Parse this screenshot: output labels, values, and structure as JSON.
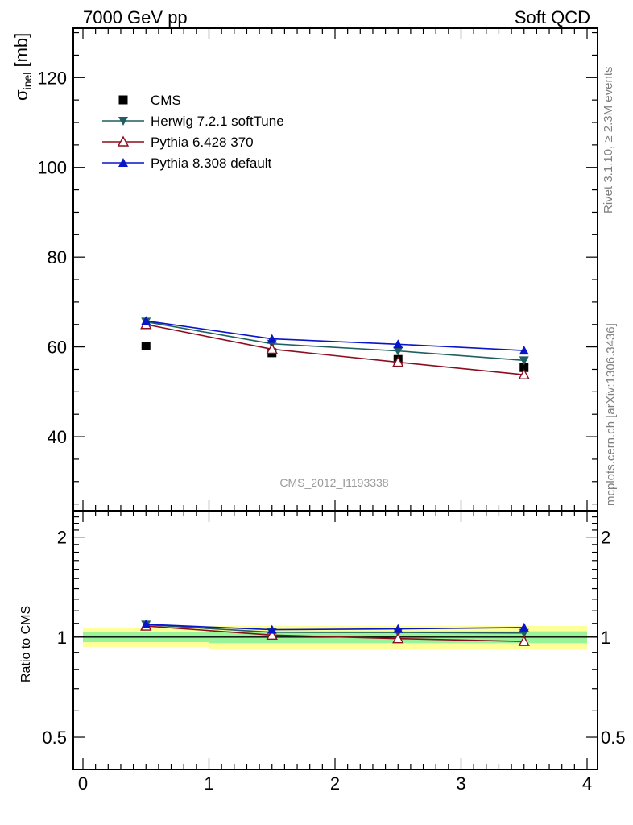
{
  "header": {
    "left": "7000 GeV pp",
    "right": "Soft QCD"
  },
  "side_text": {
    "rivet": "Rivet 3.1.10, ≥ 2.3M events",
    "mcplots": "mcplots.cern.ch [arXiv:1306.3436]"
  },
  "watermark": "CMS_2012_I1193338",
  "chart_data": [
    {
      "type": "scatter",
      "panel": "main",
      "ylabel_symbol": "σ",
      "ylabel_sub": "inel",
      "ylabel_unit": "[mb]",
      "xlim": [
        0,
        4
      ],
      "ylim": [
        23.5,
        131
      ],
      "yticks": [
        40,
        60,
        80,
        100,
        120
      ],
      "ytick_labels": [
        "40",
        "60",
        "80",
        "100",
        "120"
      ],
      "legend_position": "top-left",
      "series": [
        {
          "name": "CMS",
          "marker": "square",
          "color": "#000000",
          "line": false,
          "x": [
            0.5,
            1.5,
            2.5,
            3.5
          ],
          "y": [
            60.2,
            58.7,
            57.2,
            55.4
          ]
        },
        {
          "name": "Herwig 7.2.1 softTune",
          "marker": "triangle-down",
          "color": "#1f5f5f",
          "line": true,
          "x": [
            0.5,
            1.5,
            2.5,
            3.5
          ],
          "y": [
            65.6,
            60.7,
            59.1,
            57.0
          ]
        },
        {
          "name": "Pythia 6.428 370",
          "marker": "triangle-up-open",
          "color": "#8b0d1f",
          "line": true,
          "x": [
            0.5,
            1.5,
            2.5,
            3.5
          ],
          "y": [
            65.0,
            59.5,
            56.6,
            53.8
          ]
        },
        {
          "name": "Pythia 8.308 default",
          "marker": "triangle-up",
          "color": "#0a14c8",
          "line": true,
          "x": [
            0.5,
            1.5,
            2.5,
            3.5
          ],
          "y": [
            65.8,
            61.8,
            60.6,
            59.2
          ]
        }
      ]
    },
    {
      "type": "line",
      "panel": "ratio",
      "ylabel": "Ratio to CMS",
      "xlim": [
        0,
        4
      ],
      "ylim": [
        0.4,
        2.4
      ],
      "yscale": "log",
      "yticks": [
        0.5,
        1,
        2
      ],
      "ytick_labels": [
        "0.5",
        "1",
        "2"
      ],
      "xticks": [
        0,
        1,
        2,
        3,
        4
      ],
      "xtick_labels": [
        "0",
        "1",
        "2",
        "3",
        "4"
      ],
      "bands": [
        {
          "x0": 0,
          "x1": 1,
          "yellow": [
            0.934,
            1.067
          ],
          "green": [
            0.966,
            1.034
          ]
        },
        {
          "x0": 1,
          "x1": 2,
          "yellow": [
            0.918,
            1.082
          ],
          "green": [
            0.959,
            1.041
          ]
        },
        {
          "x0": 2,
          "x1": 3,
          "yellow": [
            0.918,
            1.082
          ],
          "green": [
            0.959,
            1.041
          ]
        },
        {
          "x0": 3,
          "x1": 4,
          "yellow": [
            0.918,
            1.082
          ],
          "green": [
            0.959,
            1.041
          ]
        }
      ],
      "series": [
        {
          "name": "Herwig 7.2.1 softTune",
          "x": [
            0.5,
            1.5,
            2.5,
            3.5
          ],
          "y": [
            1.09,
            1.034,
            1.033,
            1.029
          ]
        },
        {
          "name": "Pythia 6.428 370",
          "x": [
            0.5,
            1.5,
            2.5,
            3.5
          ],
          "y": [
            1.08,
            1.014,
            0.99,
            0.971
          ]
        },
        {
          "name": "Pythia 8.308 default",
          "x": [
            0.5,
            1.5,
            2.5,
            3.5
          ],
          "y": [
            1.093,
            1.053,
            1.059,
            1.069
          ]
        }
      ]
    }
  ]
}
